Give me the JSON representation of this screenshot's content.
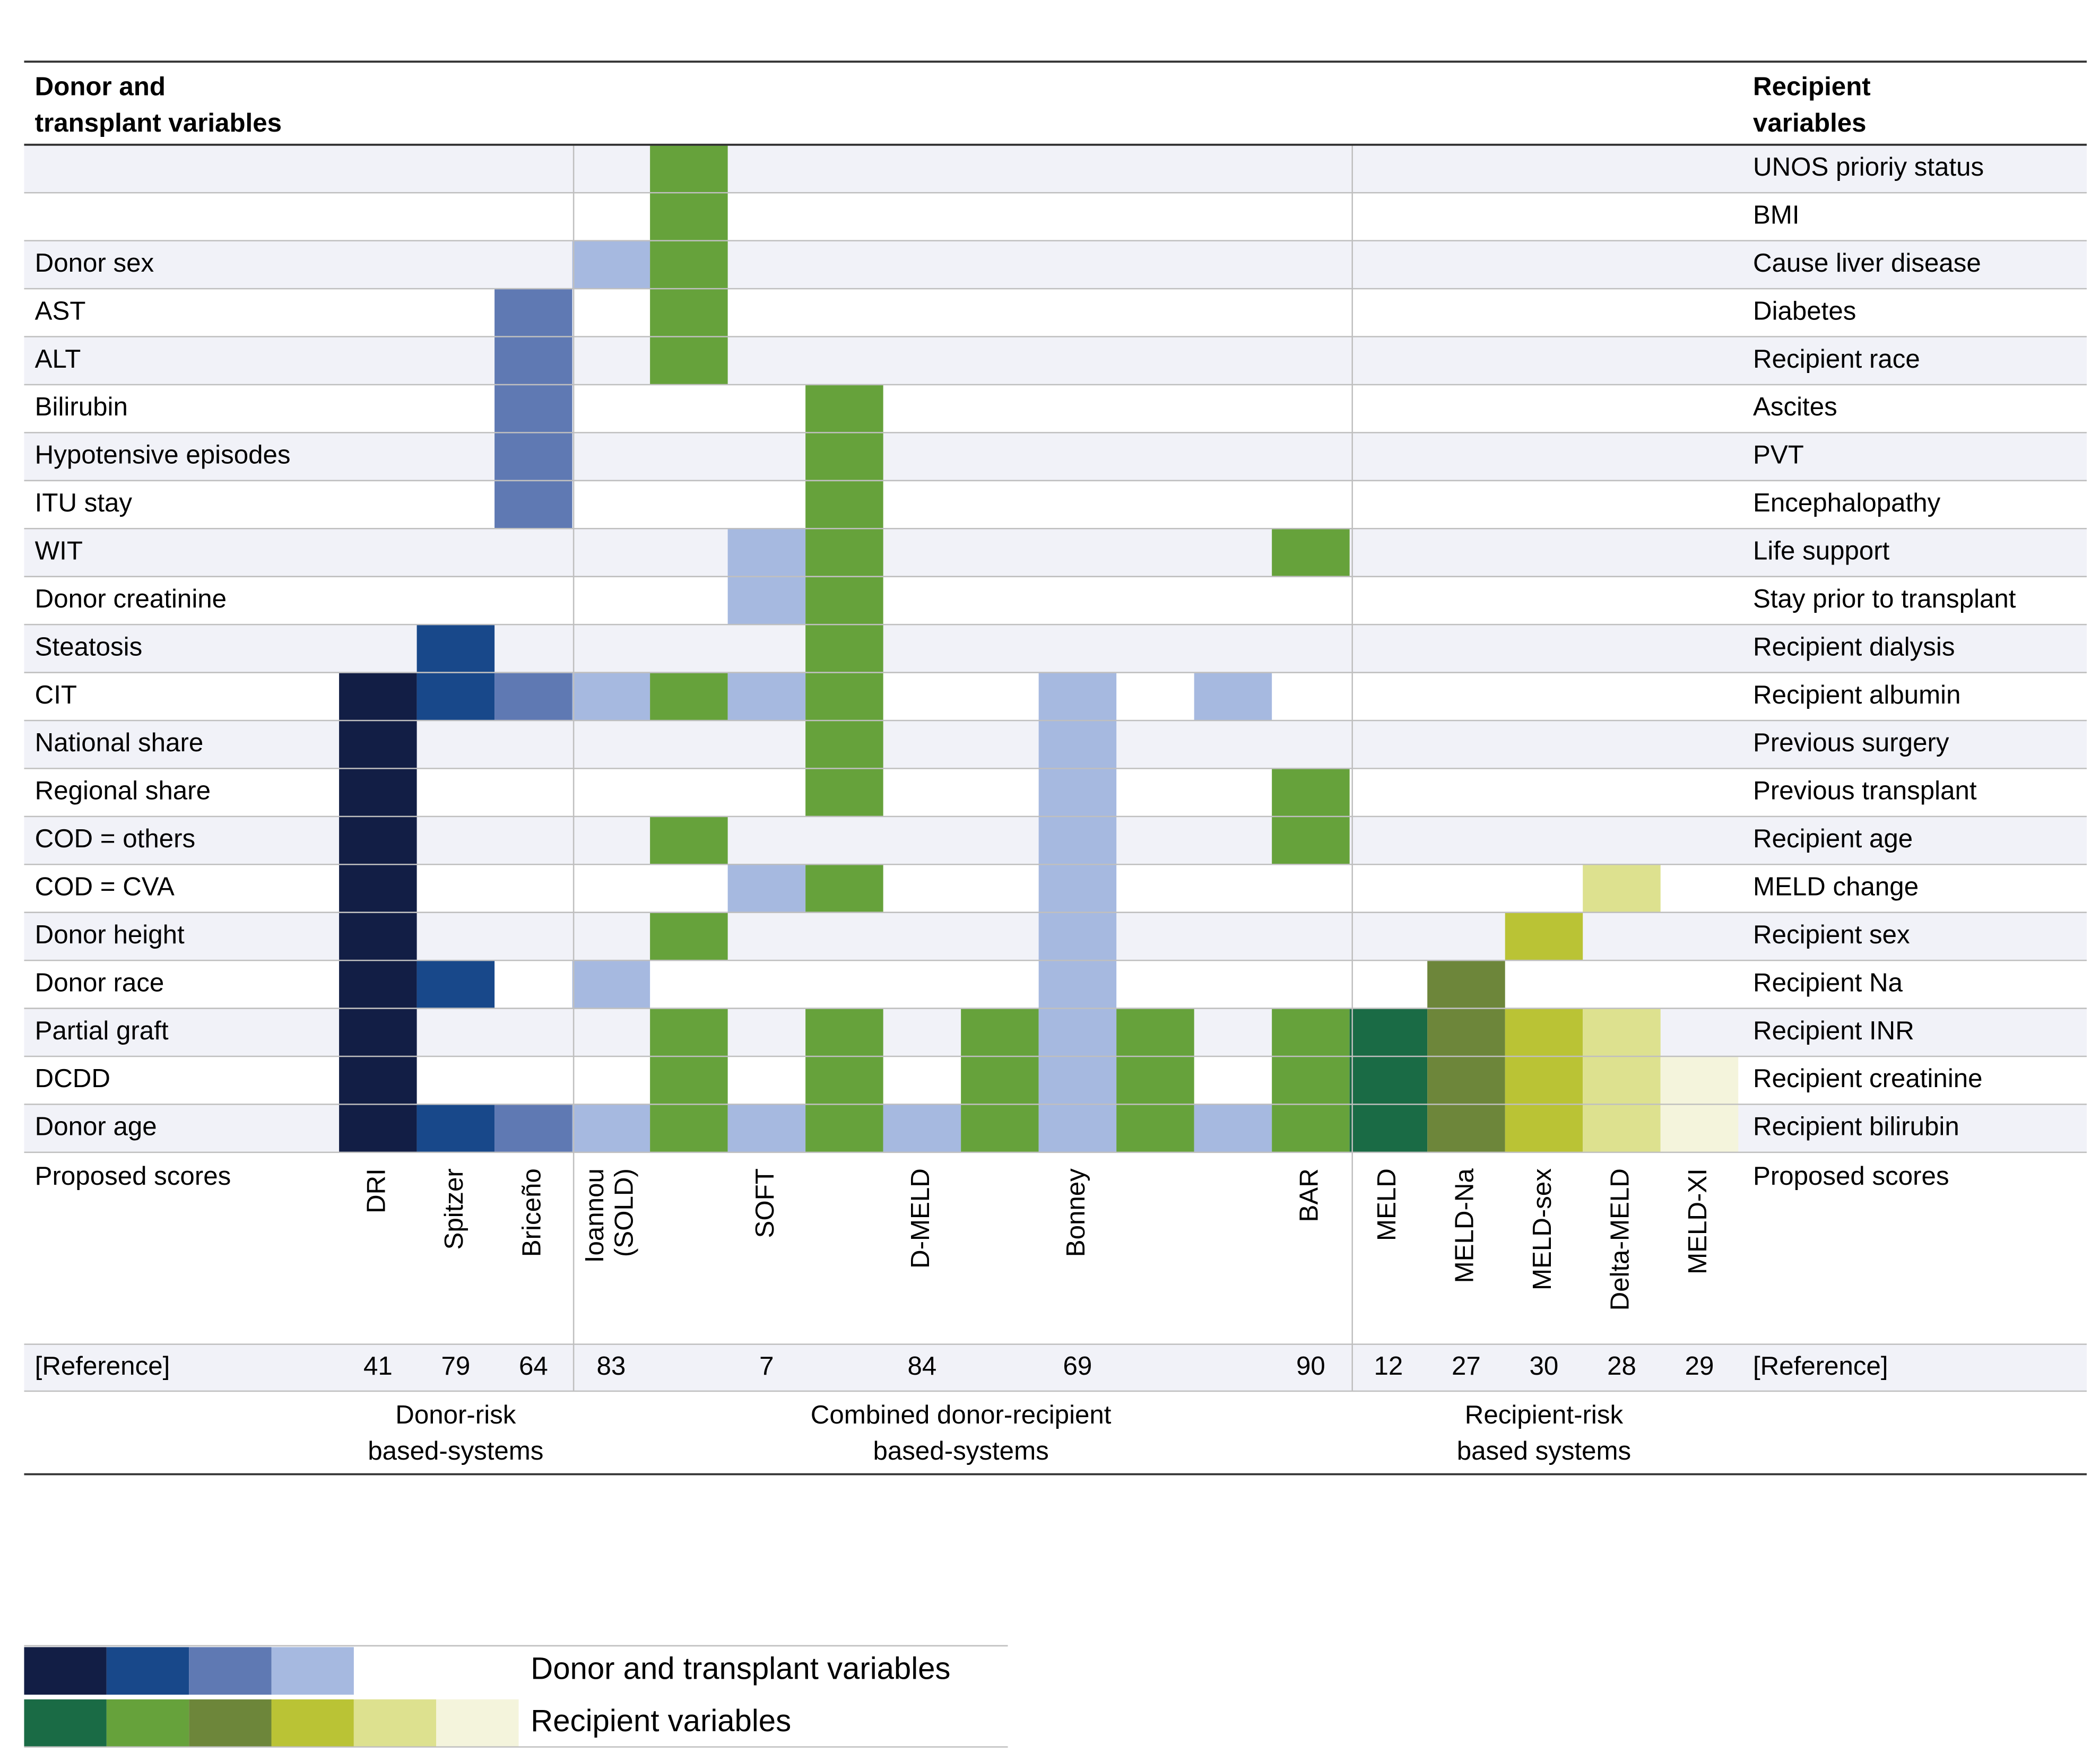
{
  "header": {
    "left_title": [
      "Donor and",
      "transplant variables"
    ],
    "right_title": [
      "Recipient",
      "variables"
    ]
  },
  "rows": [
    {
      "donor_label": "",
      "recipient_label": "UNOS prioriy status"
    },
    {
      "donor_label": "",
      "recipient_label": "BMI"
    },
    {
      "donor_label": "Donor sex",
      "recipient_label": "Cause liver disease"
    },
    {
      "donor_label": "AST",
      "recipient_label": "Diabetes"
    },
    {
      "donor_label": "ALT",
      "recipient_label": "Recipient race"
    },
    {
      "donor_label": "Bilirubin",
      "recipient_label": "Ascites"
    },
    {
      "donor_label": "Hypotensive episodes",
      "recipient_label": "PVT"
    },
    {
      "donor_label": "ITU stay",
      "recipient_label": "Encephalopathy"
    },
    {
      "donor_label": "WIT",
      "recipient_label": "Life support"
    },
    {
      "donor_label": "Donor creatinine",
      "recipient_label": "Stay prior to transplant"
    },
    {
      "donor_label": "Steatosis",
      "recipient_label": "Recipient dialysis"
    },
    {
      "donor_label": "CIT",
      "recipient_label": "Recipient albumin"
    },
    {
      "donor_label": "National share",
      "recipient_label": "Previous surgery"
    },
    {
      "donor_label": "Regional share",
      "recipient_label": "Previous transplant"
    },
    {
      "donor_label": "COD = others",
      "recipient_label": "Recipient age"
    },
    {
      "donor_label": "COD = CVA",
      "recipient_label": "MELD change"
    },
    {
      "donor_label": "Donor height",
      "recipient_label": "Recipient sex"
    },
    {
      "donor_label": "Donor race",
      "recipient_label": "Recipient Na"
    },
    {
      "donor_label": "Partial graft",
      "recipient_label": "Recipient INR"
    },
    {
      "donor_label": "DCDD",
      "recipient_label": "Recipient creatinine"
    },
    {
      "donor_label": "Donor age",
      "recipient_label": "Recipient bilirubin"
    }
  ],
  "scores_label": "Proposed scores",
  "reference_label": "[Reference]",
  "scores": [
    {
      "name": [
        "DRI"
      ],
      "ref": "41"
    },
    {
      "name": [
        "Spitzer"
      ],
      "ref": "79"
    },
    {
      "name": [
        "Briceño"
      ],
      "ref": "64"
    },
    {
      "name": [
        "Ioannou",
        "(SOLD)"
      ],
      "ref": "83"
    },
    {
      "name": [
        ""
      ],
      "ref": ""
    },
    {
      "name": [
        "SOFT"
      ],
      "ref": "7"
    },
    {
      "name": [
        ""
      ],
      "ref": ""
    },
    {
      "name": [
        "D-MELD"
      ],
      "ref": "84"
    },
    {
      "name": [
        ""
      ],
      "ref": ""
    },
    {
      "name": [
        "Bonney"
      ],
      "ref": "69"
    },
    {
      "name": [
        ""
      ],
      "ref": ""
    },
    {
      "name": [
        ""
      ],
      "ref": ""
    },
    {
      "name": [
        "BAR"
      ],
      "ref": "90"
    },
    {
      "name": [
        "MELD"
      ],
      "ref": "12"
    },
    {
      "name": [
        "MELD-Na"
      ],
      "ref": "27"
    },
    {
      "name": [
        "MELD-sex"
      ],
      "ref": "30"
    },
    {
      "name": [
        "Delta-MELD"
      ],
      "ref": "28"
    },
    {
      "name": [
        "MELD-XI"
      ],
      "ref": "29"
    }
  ],
  "groups": [
    {
      "label": [
        "Donor-risk",
        "based-systems"
      ],
      "first_col": 0,
      "last_col": 2
    },
    {
      "label": [
        "Combined donor-recipient",
        "based-systems"
      ],
      "first_col": 3,
      "last_col": 12
    },
    {
      "label": [
        "Recipient-risk",
        "based systems"
      ],
      "first_col": 13,
      "last_col": 17
    }
  ],
  "palette": {
    "d1": "#121E45",
    "d2": "#18488A",
    "d3": "#5F79B3",
    "d4": "#A6B9E0",
    "r1": "#1A6B45",
    "r2": "#66A23B",
    "r3": "#6D863A",
    "r4": "#BAC335",
    "r5": "#DDE18F",
    "r6": "#F4F4DC"
  },
  "matrix": [
    [
      "",
      "",
      "",
      "",
      "r2",
      "",
      "",
      "",
      "",
      "",
      "",
      "",
      "",
      "",
      "",
      "",
      "",
      ""
    ],
    [
      "",
      "",
      "",
      "",
      "r2",
      "",
      "",
      "",
      "",
      "",
      "",
      "",
      "",
      "",
      "",
      "",
      "",
      ""
    ],
    [
      "",
      "",
      "",
      "d4",
      "r2",
      "",
      "",
      "",
      "",
      "",
      "",
      "",
      "",
      "",
      "",
      "",
      "",
      ""
    ],
    [
      "",
      "",
      "d3",
      "",
      "r2",
      "",
      "",
      "",
      "",
      "",
      "",
      "",
      "",
      "",
      "",
      "",
      "",
      ""
    ],
    [
      "",
      "",
      "d3",
      "",
      "r2",
      "",
      "",
      "",
      "",
      "",
      "",
      "",
      "",
      "",
      "",
      "",
      "",
      ""
    ],
    [
      "",
      "",
      "d3",
      "",
      "",
      "",
      "r2",
      "",
      "",
      "",
      "",
      "",
      "",
      "",
      "",
      "",
      "",
      ""
    ],
    [
      "",
      "",
      "d3",
      "",
      "",
      "",
      "r2",
      "",
      "",
      "",
      "",
      "",
      "",
      "",
      "",
      "",
      "",
      ""
    ],
    [
      "",
      "",
      "d3",
      "",
      "",
      "",
      "r2",
      "",
      "",
      "",
      "",
      "",
      "",
      "",
      "",
      "",
      "",
      ""
    ],
    [
      "",
      "",
      "",
      "",
      "",
      "d4",
      "r2",
      "",
      "",
      "",
      "",
      "",
      "r2",
      "",
      "",
      "",
      "",
      ""
    ],
    [
      "",
      "",
      "",
      "",
      "",
      "d4",
      "r2",
      "",
      "",
      "",
      "",
      "",
      "",
      "",
      "",
      "",
      "",
      ""
    ],
    [
      "",
      "d2",
      "",
      "",
      "",
      "",
      "r2",
      "",
      "",
      "",
      "",
      "",
      "",
      "",
      "",
      "",
      "",
      ""
    ],
    [
      "d1",
      "d2",
      "d3",
      "d4",
      "r2",
      "d4",
      "r2",
      "",
      "",
      "d4",
      "",
      "d4",
      "",
      "",
      "",
      "",
      "",
      ""
    ],
    [
      "d1",
      "",
      "",
      "",
      "",
      "",
      "r2",
      "",
      "",
      "d4",
      "",
      "",
      "",
      "",
      "",
      "",
      "",
      ""
    ],
    [
      "d1",
      "",
      "",
      "",
      "",
      "",
      "r2",
      "",
      "",
      "d4",
      "",
      "",
      "r2",
      "",
      "",
      "",
      "",
      ""
    ],
    [
      "d1",
      "",
      "",
      "",
      "r2",
      "",
      "",
      "",
      "",
      "d4",
      "",
      "",
      "r2",
      "",
      "",
      "",
      "",
      ""
    ],
    [
      "d1",
      "",
      "",
      "",
      "",
      "d4",
      "r2",
      "",
      "",
      "d4",
      "",
      "",
      "",
      "",
      "",
      "",
      "r5",
      ""
    ],
    [
      "d1",
      "",
      "",
      "",
      "r2",
      "",
      "",
      "",
      "",
      "d4",
      "",
      "",
      "",
      "",
      "",
      "r4",
      "",
      ""
    ],
    [
      "d1",
      "d2",
      "",
      "d4",
      "",
      "",
      "",
      "",
      "",
      "d4",
      "",
      "",
      "",
      "",
      "r3",
      "",
      "",
      ""
    ],
    [
      "d1",
      "",
      "",
      "",
      "r2",
      "",
      "r2",
      "",
      "r2",
      "d4",
      "r2",
      "",
      "r2",
      "r1",
      "r3",
      "r4",
      "r5",
      ""
    ],
    [
      "d1",
      "",
      "",
      "",
      "r2",
      "",
      "r2",
      "",
      "r2",
      "d4",
      "r2",
      "",
      "r2",
      "r1",
      "r3",
      "r4",
      "r5",
      "r6"
    ],
    [
      "d1",
      "d2",
      "d3",
      "d4",
      "r2",
      "d4",
      "r2",
      "d4",
      "r2",
      "d4",
      "r2",
      "d4",
      "r2",
      "r1",
      "r3",
      "r4",
      "r5",
      "r6"
    ]
  ],
  "legend": {
    "donor_swatches": [
      "d1",
      "d2",
      "d3",
      "d4"
    ],
    "recipient_swatches": [
      "r1",
      "r2",
      "r3",
      "r4",
      "r5",
      "r6"
    ],
    "donor_label": "Donor and transplant variables",
    "recipient_label": "Recipient variables"
  },
  "colors": {
    "stripe": "#F1F2F8",
    "grid_line": "#BFBFBF",
    "rule": "#333333"
  }
}
